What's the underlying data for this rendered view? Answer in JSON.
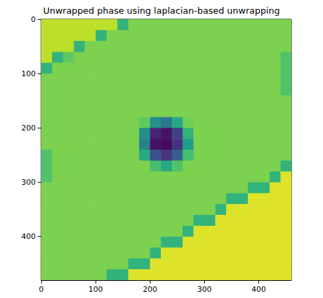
{
  "chart_data": {
    "type": "heatmap",
    "title": "Unwrapped phase using laplacian-based unwrapping",
    "x": [
      10,
      30,
      50,
      70,
      90,
      110,
      130,
      150,
      170,
      190,
      210,
      230,
      250,
      270,
      290,
      310,
      330,
      350,
      370,
      390,
      410,
      430,
      450
    ],
    "y": [
      10,
      30,
      50,
      70,
      90,
      110,
      130,
      150,
      170,
      190,
      210,
      230,
      250,
      270,
      290,
      310,
      330,
      350,
      370,
      390,
      410,
      430,
      450,
      470
    ],
    "z": [
      [
        0.9,
        0.9,
        0.9,
        0.9,
        0.9,
        0.9,
        0.9,
        0.65,
        0.8,
        0.8,
        0.8,
        0.8,
        0.8,
        0.8,
        0.8,
        0.8,
        0.8,
        0.8,
        0.8,
        0.8,
        0.8,
        0.8,
        0.8
      ],
      [
        0.9,
        0.9,
        0.9,
        0.9,
        0.9,
        0.65,
        0.8,
        0.8,
        0.8,
        0.8,
        0.8,
        0.8,
        0.8,
        0.8,
        0.8,
        0.8,
        0.8,
        0.8,
        0.8,
        0.8,
        0.8,
        0.8,
        0.8
      ],
      [
        0.9,
        0.9,
        0.9,
        0.65,
        0.8,
        0.8,
        0.8,
        0.8,
        0.8,
        0.8,
        0.8,
        0.8,
        0.8,
        0.8,
        0.8,
        0.8,
        0.8,
        0.8,
        0.8,
        0.8,
        0.8,
        0.8,
        0.8
      ],
      [
        0.9,
        0.65,
        0.75,
        0.8,
        0.8,
        0.8,
        0.8,
        0.8,
        0.8,
        0.8,
        0.8,
        0.8,
        0.8,
        0.8,
        0.8,
        0.8,
        0.8,
        0.8,
        0.8,
        0.8,
        0.8,
        0.8,
        0.72
      ],
      [
        0.65,
        0.8,
        0.8,
        0.8,
        0.8,
        0.8,
        0.8,
        0.8,
        0.8,
        0.8,
        0.8,
        0.8,
        0.8,
        0.8,
        0.8,
        0.8,
        0.8,
        0.8,
        0.8,
        0.8,
        0.8,
        0.8,
        0.72
      ],
      [
        0.8,
        0.8,
        0.8,
        0.8,
        0.8,
        0.8,
        0.8,
        0.8,
        0.8,
        0.8,
        0.8,
        0.8,
        0.8,
        0.8,
        0.8,
        0.8,
        0.8,
        0.8,
        0.8,
        0.8,
        0.8,
        0.8,
        0.72
      ],
      [
        0.8,
        0.8,
        0.8,
        0.8,
        0.8,
        0.8,
        0.8,
        0.8,
        0.8,
        0.8,
        0.8,
        0.8,
        0.8,
        0.8,
        0.8,
        0.8,
        0.8,
        0.8,
        0.8,
        0.8,
        0.8,
        0.8,
        0.72
      ],
      [
        0.8,
        0.8,
        0.8,
        0.8,
        0.8,
        0.8,
        0.8,
        0.8,
        0.8,
        0.8,
        0.8,
        0.8,
        0.8,
        0.8,
        0.8,
        0.8,
        0.8,
        0.8,
        0.8,
        0.8,
        0.8,
        0.8,
        0.8
      ],
      [
        0.8,
        0.8,
        0.8,
        0.8,
        0.8,
        0.8,
        0.8,
        0.8,
        0.8,
        0.8,
        0.8,
        0.8,
        0.8,
        0.8,
        0.8,
        0.8,
        0.8,
        0.8,
        0.8,
        0.8,
        0.8,
        0.8,
        0.8
      ],
      [
        0.8,
        0.8,
        0.8,
        0.8,
        0.8,
        0.8,
        0.8,
        0.8,
        0.8,
        0.75,
        0.5,
        0.4,
        0.6,
        0.78,
        0.8,
        0.8,
        0.8,
        0.8,
        0.8,
        0.8,
        0.8,
        0.8,
        0.8
      ],
      [
        0.8,
        0.8,
        0.8,
        0.8,
        0.8,
        0.8,
        0.8,
        0.8,
        0.8,
        0.5,
        0.1,
        0.05,
        0.2,
        0.65,
        0.8,
        0.8,
        0.8,
        0.8,
        0.8,
        0.8,
        0.8,
        0.8,
        0.8
      ],
      [
        0.8,
        0.8,
        0.8,
        0.8,
        0.8,
        0.8,
        0.8,
        0.8,
        0.8,
        0.45,
        0.05,
        0.03,
        0.15,
        0.55,
        0.8,
        0.8,
        0.8,
        0.8,
        0.8,
        0.8,
        0.8,
        0.8,
        0.8
      ],
      [
        0.72,
        0.8,
        0.8,
        0.8,
        0.8,
        0.8,
        0.8,
        0.8,
        0.8,
        0.6,
        0.25,
        0.15,
        0.3,
        0.7,
        0.8,
        0.8,
        0.8,
        0.8,
        0.8,
        0.8,
        0.8,
        0.8,
        0.8
      ],
      [
        0.72,
        0.8,
        0.8,
        0.8,
        0.8,
        0.8,
        0.8,
        0.8,
        0.8,
        0.8,
        0.7,
        0.6,
        0.72,
        0.8,
        0.8,
        0.8,
        0.8,
        0.8,
        0.8,
        0.8,
        0.8,
        0.8,
        0.65
      ],
      [
        0.72,
        0.8,
        0.8,
        0.8,
        0.8,
        0.8,
        0.8,
        0.8,
        0.8,
        0.8,
        0.8,
        0.8,
        0.8,
        0.8,
        0.8,
        0.8,
        0.8,
        0.8,
        0.8,
        0.8,
        0.8,
        0.65,
        0.95
      ],
      [
        0.8,
        0.8,
        0.8,
        0.8,
        0.8,
        0.8,
        0.8,
        0.8,
        0.8,
        0.8,
        0.8,
        0.8,
        0.8,
        0.8,
        0.8,
        0.8,
        0.8,
        0.8,
        0.8,
        0.65,
        0.65,
        0.95,
        0.95
      ],
      [
        0.8,
        0.8,
        0.8,
        0.8,
        0.8,
        0.8,
        0.8,
        0.8,
        0.8,
        0.8,
        0.8,
        0.8,
        0.8,
        0.8,
        0.8,
        0.8,
        0.8,
        0.65,
        0.65,
        0.95,
        0.95,
        0.95,
        0.95
      ],
      [
        0.8,
        0.8,
        0.8,
        0.8,
        0.8,
        0.8,
        0.8,
        0.8,
        0.8,
        0.8,
        0.8,
        0.8,
        0.8,
        0.8,
        0.8,
        0.8,
        0.65,
        0.95,
        0.95,
        0.95,
        0.95,
        0.95,
        0.95
      ],
      [
        0.8,
        0.8,
        0.8,
        0.8,
        0.8,
        0.8,
        0.8,
        0.8,
        0.8,
        0.8,
        0.8,
        0.8,
        0.8,
        0.8,
        0.65,
        0.65,
        0.95,
        0.95,
        0.95,
        0.95,
        0.95,
        0.95,
        0.95
      ],
      [
        0.8,
        0.8,
        0.8,
        0.8,
        0.8,
        0.8,
        0.8,
        0.8,
        0.8,
        0.8,
        0.8,
        0.8,
        0.8,
        0.65,
        0.95,
        0.95,
        0.95,
        0.95,
        0.95,
        0.95,
        0.95,
        0.95,
        0.95
      ],
      [
        0.8,
        0.8,
        0.8,
        0.8,
        0.8,
        0.8,
        0.8,
        0.8,
        0.8,
        0.8,
        0.8,
        0.65,
        0.65,
        0.95,
        0.95,
        0.95,
        0.95,
        0.95,
        0.95,
        0.95,
        0.95,
        0.95,
        0.95
      ],
      [
        0.8,
        0.8,
        0.8,
        0.8,
        0.8,
        0.8,
        0.8,
        0.8,
        0.8,
        0.8,
        0.65,
        0.95,
        0.95,
        0.95,
        0.95,
        0.95,
        0.95,
        0.95,
        0.95,
        0.95,
        0.95,
        0.95,
        0.95
      ],
      [
        0.8,
        0.8,
        0.8,
        0.8,
        0.8,
        0.8,
        0.8,
        0.8,
        0.65,
        0.65,
        0.95,
        0.95,
        0.95,
        0.95,
        0.95,
        0.95,
        0.95,
        0.95,
        0.95,
        0.95,
        0.95,
        0.95,
        0.95
      ],
      [
        0.8,
        0.8,
        0.8,
        0.8,
        0.8,
        0.8,
        0.65,
        0.65,
        0.95,
        0.95,
        0.95,
        0.95,
        0.95,
        0.95,
        0.95,
        0.95,
        0.95,
        0.95,
        0.95,
        0.95,
        0.95,
        0.95,
        0.95
      ]
    ],
    "zlim": [
      0,
      1
    ],
    "xlim": [
      0,
      460
    ],
    "ylim": [
      0,
      480
    ],
    "xticks": [
      0,
      100,
      200,
      300,
      400
    ],
    "yticks": [
      0,
      100,
      200,
      300,
      400
    ],
    "grid": false
  }
}
